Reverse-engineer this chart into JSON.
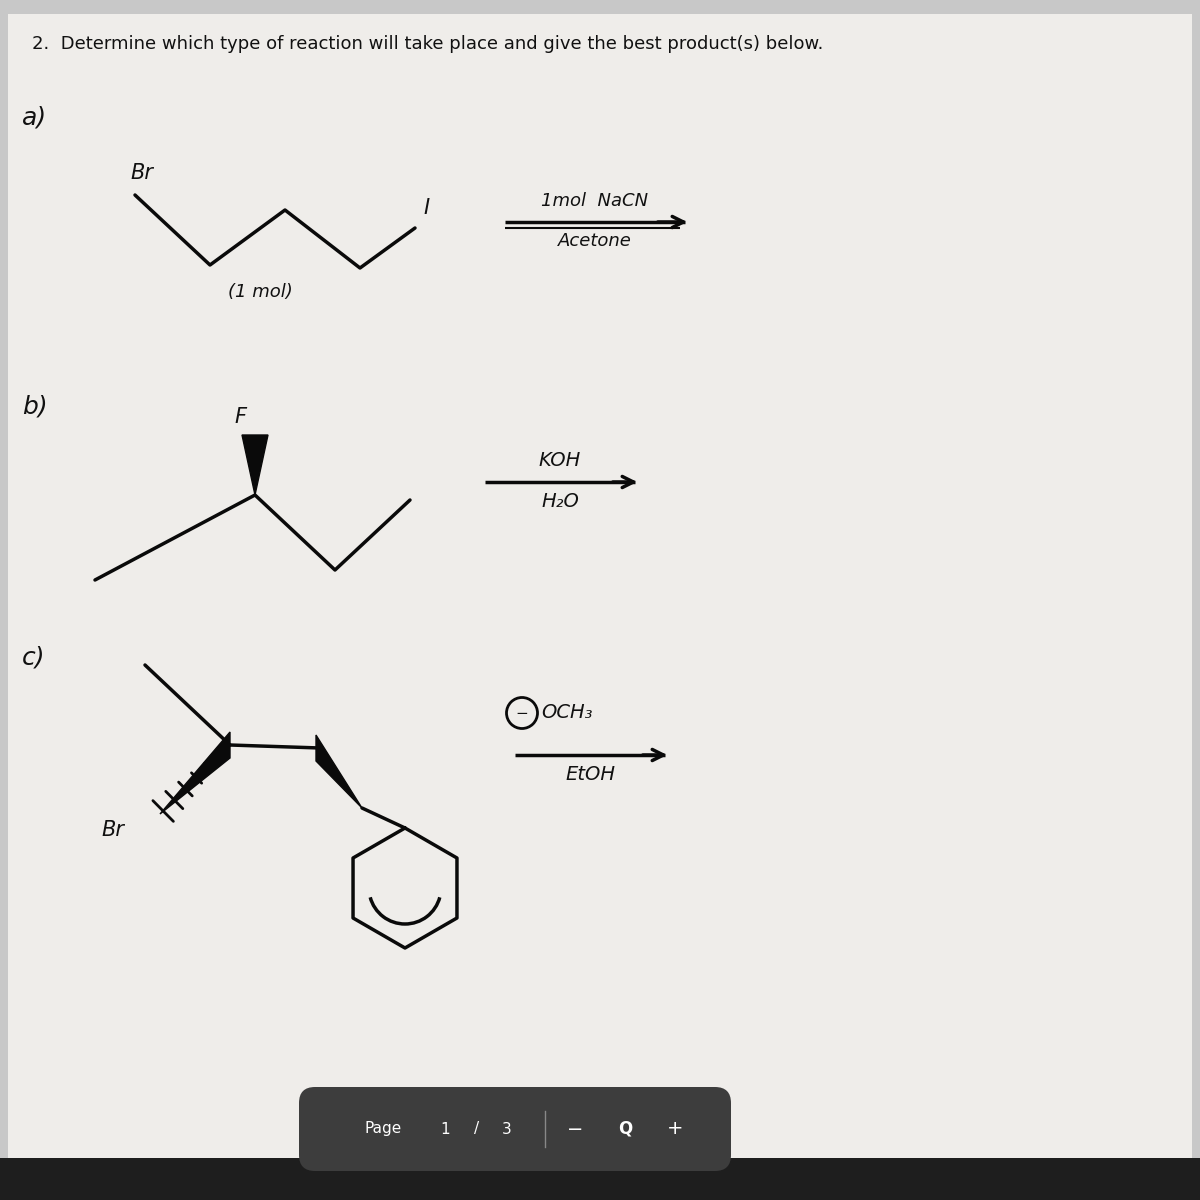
{
  "title": "2.  Determine which type of reaction will take place and give the best product(s) below.",
  "bg_color": "#d8d8d8",
  "paper_color": "#f0eeec",
  "text_color": "#111111",
  "label_a": "a)",
  "label_b": "b)",
  "label_c": "c)",
  "reaction_a_top": "1mol  NaCN",
  "reaction_a_bottom": "Acetone",
  "reaction_a_sub": "(1 mol)",
  "reaction_a_halogen1": "Br",
  "reaction_a_halogen2": "I",
  "reaction_b_top": "KOH",
  "reaction_b_bottom": "H₂O",
  "reaction_b_halogen": "F",
  "reaction_c_top_circle": "−",
  "reaction_c_top_text": "OCH₃",
  "reaction_c_bottom": "EtOH",
  "reaction_c_halogen": "Br",
  "page_text": "Page",
  "page_num": "1",
  "page_slash": "/",
  "page_total": "3",
  "footer_bg": "#3d3d3d"
}
